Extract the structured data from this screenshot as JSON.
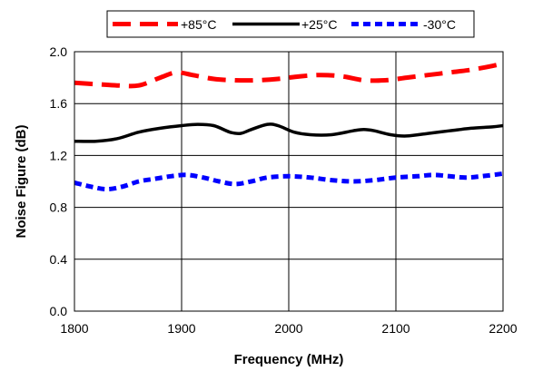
{
  "chart_data": {
    "type": "line",
    "title": "",
    "xlabel": "Frequency (MHz)",
    "ylabel": "Noise Figure (dB)",
    "xlim": [
      1800,
      2200
    ],
    "ylim": [
      0.0,
      2.0
    ],
    "x_ticks": [
      "1800",
      "1900",
      "2000",
      "2100",
      "2200"
    ],
    "y_ticks": [
      "0.0",
      "0.4",
      "0.8",
      "1.2",
      "1.6",
      "2.0"
    ],
    "grid": true,
    "legend_position": "top",
    "series": [
      {
        "name": "+85°C",
        "color": "#ff0000",
        "style": "long-dash",
        "x": [
          1800,
          1820,
          1840,
          1860,
          1880,
          1895,
          1910,
          1930,
          1950,
          1970,
          1990,
          2010,
          2030,
          2050,
          2070,
          2090,
          2110,
          2130,
          2150,
          2170,
          2190,
          2200
        ],
        "y": [
          1.76,
          1.75,
          1.74,
          1.74,
          1.8,
          1.84,
          1.82,
          1.79,
          1.78,
          1.78,
          1.79,
          1.81,
          1.82,
          1.81,
          1.78,
          1.78,
          1.8,
          1.82,
          1.84,
          1.86,
          1.89,
          1.91
        ]
      },
      {
        "name": "+25°C",
        "color": "#000000",
        "style": "solid",
        "x": [
          1800,
          1820,
          1840,
          1860,
          1880,
          1900,
          1915,
          1930,
          1945,
          1955,
          1965,
          1980,
          1990,
          2005,
          2020,
          2040,
          2060,
          2070,
          2080,
          2095,
          2110,
          2130,
          2150,
          2170,
          2190,
          2200
        ],
        "y": [
          1.31,
          1.31,
          1.33,
          1.38,
          1.41,
          1.43,
          1.44,
          1.43,
          1.38,
          1.37,
          1.4,
          1.44,
          1.43,
          1.38,
          1.36,
          1.36,
          1.39,
          1.4,
          1.39,
          1.36,
          1.35,
          1.37,
          1.39,
          1.41,
          1.42,
          1.43
        ]
      },
      {
        "name": "-30°C",
        "color": "#0000ff",
        "style": "short-dash",
        "x": [
          1800,
          1815,
          1830,
          1845,
          1860,
          1875,
          1890,
          1905,
          1920,
          1935,
          1950,
          1965,
          1980,
          2000,
          2020,
          2040,
          2060,
          2080,
          2100,
          2120,
          2135,
          2150,
          2165,
          2180,
          2200
        ],
        "y": [
          0.99,
          0.96,
          0.94,
          0.96,
          1.0,
          1.02,
          1.04,
          1.05,
          1.03,
          1.0,
          0.98,
          1.0,
          1.03,
          1.04,
          1.03,
          1.01,
          1.0,
          1.01,
          1.03,
          1.04,
          1.05,
          1.04,
          1.03,
          1.04,
          1.06
        ]
      }
    ]
  }
}
